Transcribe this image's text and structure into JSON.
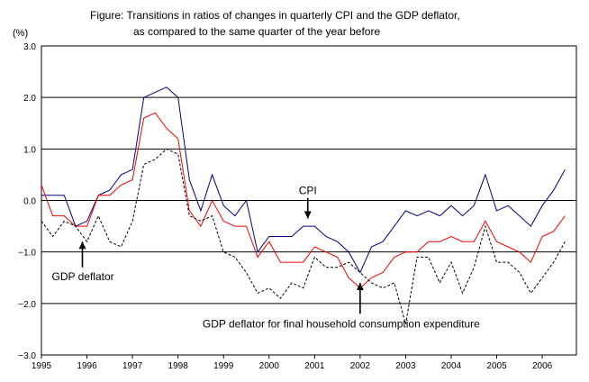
{
  "chart_data": {
    "type": "line",
    "title_line1": "Figure: Transitions in ratios of changes in quarterly CPI and the GDP deflator,",
    "title_line2": "as compared to the same quarter of the year before",
    "ylabel": "(%)",
    "ylim": [
      -3.0,
      3.0
    ],
    "yticks": [
      "3.0",
      "2.0",
      "1.0",
      "0.0",
      "−1.0",
      "−2.0",
      "−3.0"
    ],
    "ytick_values": [
      3,
      2,
      1,
      0,
      -1,
      -2,
      -3
    ],
    "xticks": [
      "1995",
      "1996",
      "1997",
      "1998",
      "1999",
      "2000",
      "2001",
      "2002",
      "2003",
      "2004",
      "2005",
      "2006"
    ],
    "xlim": [
      1995.0,
      2006.75
    ],
    "grid": "horizontal",
    "series": [
      {
        "name": "CPI",
        "color": "#00007f",
        "style": "solid",
        "x": [
          1995.0,
          1995.25,
          1995.5,
          1995.75,
          1996.0,
          1996.25,
          1996.5,
          1996.75,
          1997.0,
          1997.25,
          1997.5,
          1997.75,
          1998.0,
          1998.25,
          1998.5,
          1998.75,
          1999.0,
          1999.25,
          1999.5,
          1999.75,
          2000.0,
          2000.25,
          2000.5,
          2000.75,
          2001.0,
          2001.25,
          2001.5,
          2001.75,
          2002.0,
          2002.25,
          2002.5,
          2002.75,
          2003.0,
          2003.25,
          2003.5,
          2003.75,
          2004.0,
          2004.25,
          2004.5,
          2004.75,
          2005.0,
          2005.25,
          2005.5,
          2005.75,
          2006.0,
          2006.25,
          2006.5
        ],
        "y": [
          0.1,
          0.1,
          0.1,
          -0.5,
          -0.4,
          0.1,
          0.2,
          0.5,
          0.6,
          2.0,
          2.1,
          2.2,
          2.0,
          0.4,
          -0.2,
          0.5,
          -0.1,
          -0.3,
          0.0,
          -1.0,
          -0.7,
          -0.7,
          -0.7,
          -0.5,
          -0.5,
          -0.7,
          -0.8,
          -1.0,
          -1.4,
          -0.9,
          -0.8,
          -0.5,
          -0.2,
          -0.3,
          -0.2,
          -0.3,
          -0.1,
          -0.3,
          -0.1,
          0.5,
          -0.2,
          -0.1,
          -0.3,
          -0.5,
          -0.1,
          0.2,
          0.6
        ]
      },
      {
        "name": "GDP deflator for final household consumption expenditure",
        "color": "#ff0000",
        "style": "solid",
        "x": [
          1995.0,
          1995.25,
          1995.5,
          1995.75,
          1996.0,
          1996.25,
          1996.5,
          1996.75,
          1997.0,
          1997.25,
          1997.5,
          1997.75,
          1998.0,
          1998.25,
          1998.5,
          1998.75,
          1999.0,
          1999.25,
          1999.5,
          1999.75,
          2000.0,
          2000.25,
          2000.5,
          2000.75,
          2001.0,
          2001.25,
          2001.5,
          2001.75,
          2002.0,
          2002.25,
          2002.5,
          2002.75,
          2003.0,
          2003.25,
          2003.5,
          2003.75,
          2004.0,
          2004.25,
          2004.5,
          2004.75,
          2005.0,
          2005.25,
          2005.5,
          2005.75,
          2006.0,
          2006.25,
          2006.5
        ],
        "y": [
          0.3,
          -0.3,
          -0.3,
          -0.5,
          -0.5,
          0.1,
          0.1,
          0.3,
          0.4,
          1.6,
          1.7,
          1.4,
          1.2,
          -0.2,
          -0.5,
          0.0,
          -0.4,
          -0.5,
          -0.5,
          -1.1,
          -0.8,
          -1.2,
          -1.2,
          -1.2,
          -0.9,
          -1.0,
          -1.1,
          -1.5,
          -1.7,
          -1.5,
          -1.4,
          -1.1,
          -1.0,
          -1.0,
          -0.8,
          -0.8,
          -0.7,
          -0.8,
          -0.8,
          -0.4,
          -0.8,
          -0.9,
          -1.0,
          -1.2,
          -0.7,
          -0.6,
          -0.3
        ]
      },
      {
        "name": "GDP deflator",
        "color": "#000000",
        "style": "dashed",
        "x": [
          1995.0,
          1995.25,
          1995.5,
          1995.75,
          1996.0,
          1996.25,
          1996.5,
          1996.75,
          1997.0,
          1997.25,
          1997.5,
          1997.75,
          1998.0,
          1998.25,
          1998.5,
          1998.75,
          1999.0,
          1999.25,
          1999.5,
          1999.75,
          2000.0,
          2000.25,
          2000.5,
          2000.75,
          2001.0,
          2001.25,
          2001.5,
          2001.75,
          2002.0,
          2002.25,
          2002.5,
          2002.75,
          2003.0,
          2003.25,
          2003.5,
          2003.75,
          2004.0,
          2004.25,
          2004.5,
          2004.75,
          2005.0,
          2005.25,
          2005.5,
          2005.75,
          2006.0,
          2006.25,
          2006.5
        ],
        "y": [
          -0.4,
          -0.7,
          -0.4,
          -0.5,
          -0.8,
          -0.3,
          -0.8,
          -0.9,
          -0.4,
          0.7,
          0.8,
          1.0,
          0.9,
          -0.3,
          -0.4,
          -0.3,
          -1.0,
          -1.1,
          -1.4,
          -1.8,
          -1.7,
          -1.9,
          -1.6,
          -1.7,
          -1.1,
          -1.3,
          -1.3,
          -1.2,
          -1.4,
          -1.6,
          -1.7,
          -1.6,
          -2.4,
          -1.1,
          -1.1,
          -1.6,
          -1.2,
          -1.8,
          -1.3,
          -0.5,
          -1.2,
          -1.2,
          -1.4,
          -1.8,
          -1.5,
          -1.2,
          -0.8
        ]
      }
    ],
    "annotations": [
      {
        "text": "CPI",
        "arrow_x": 2000.85,
        "arrow_tip_y": -0.35,
        "arrow_tail_y": 0.05,
        "direction": "down"
      },
      {
        "text": "GDP deflator",
        "arrow_x": 1995.9,
        "arrow_tip_y": -0.8,
        "arrow_tail_y": -1.3,
        "direction": "up"
      },
      {
        "text": "GDP deflator for final household consumption expenditure",
        "arrow_x": 2002.0,
        "arrow_tip_y": -1.6,
        "arrow_tail_y": -2.2,
        "direction": "up"
      }
    ]
  }
}
